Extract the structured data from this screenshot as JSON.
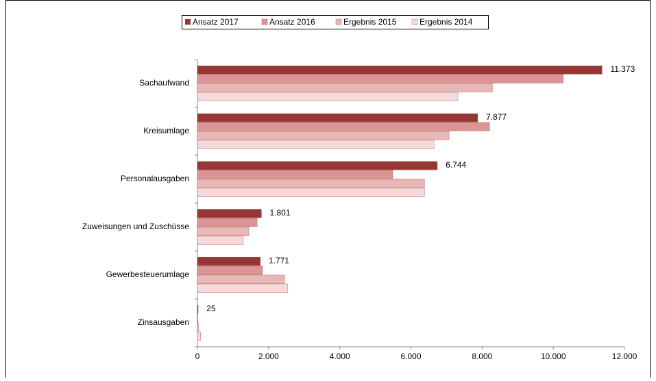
{
  "chart_data": {
    "type": "hbar",
    "categories": [
      "Sachaufwand",
      "Kreisumlage",
      "Personalausgaben",
      "Zuweisungen und Zuschüsse",
      "Gewerbesteuerumlage",
      "Zinsausgaben"
    ],
    "series": [
      {
        "name": "Ansatz 2017",
        "color": "#953735",
        "values": [
          11373,
          7877,
          6744,
          1801,
          1771,
          25
        ],
        "value_labels": [
          "11.373",
          "7.877",
          "6.744",
          "1.801",
          "1.771",
          "25"
        ]
      },
      {
        "name": "Ansatz 2016",
        "color": "#d99694",
        "values": [
          10280,
          8210,
          5490,
          1680,
          1830,
          15
        ]
      },
      {
        "name": "Ergebnis 2015",
        "color": "#e6b9b8",
        "values": [
          8290,
          7070,
          6380,
          1445,
          2450,
          30
        ]
      },
      {
        "name": "Ergebnis 2014",
        "color": "#f2dcdb",
        "values": [
          7320,
          6650,
          6380,
          1290,
          2540,
          90
        ]
      }
    ],
    "xlim": [
      0,
      12000
    ],
    "xticks": [
      0,
      {
        "value": 2000,
        "label": "2.000"
      },
      {
        "value": 4000,
        "label": "4.000"
      },
      {
        "value": 6000,
        "label": "6.000"
      },
      {
        "value": 8000,
        "label": "8.000"
      },
      {
        "value": 10000,
        "label": "10.000"
      },
      {
        "value": 12000,
        "label": "12.000"
      }
    ],
    "legend": "top"
  }
}
